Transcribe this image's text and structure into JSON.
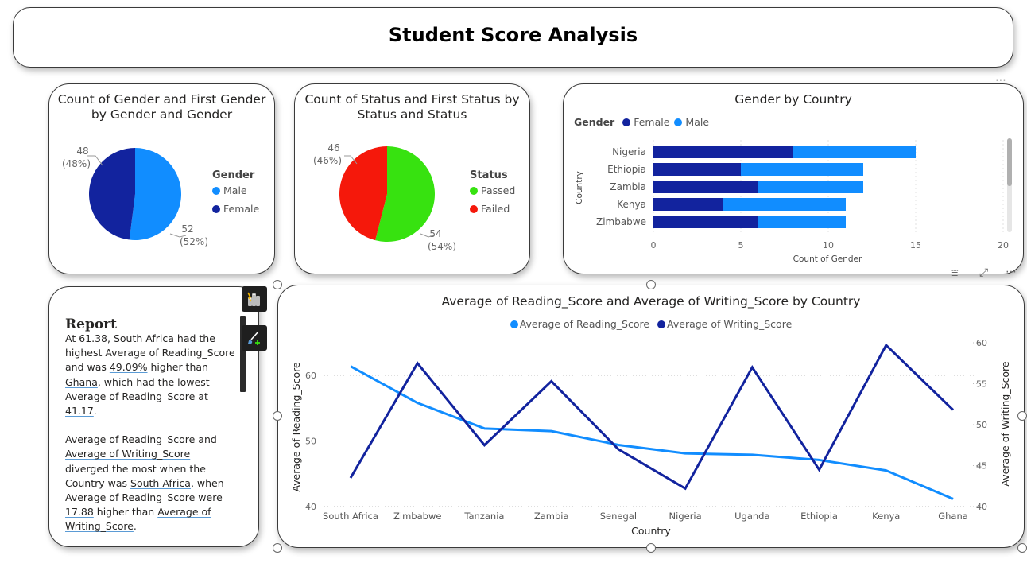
{
  "page_title": "Student Score Analysis",
  "colors": {
    "male": "#118dff",
    "female": "#12239e",
    "passed": "#37e210",
    "failed": "#f5180b",
    "reading": "#118dff",
    "writing": "#12239e"
  },
  "gender_pie": {
    "title_line1": "Count of Gender and First Gender",
    "title_line2": "by Gender and Gender",
    "legend_title": "Gender",
    "labels": [
      "Male",
      "Female"
    ],
    "data_labels": [
      {
        "count": "52",
        "pct": "(52%)"
      },
      {
        "count": "48",
        "pct": "(48%)"
      }
    ]
  },
  "status_pie": {
    "title_line1": "Count of Status and First Status by",
    "title_line2": "Status and Status",
    "legend_title": "Status",
    "labels": [
      "Passed",
      "Failed"
    ],
    "data_labels": [
      {
        "count": "54",
        "pct": "(54%)"
      },
      {
        "count": "46",
        "pct": "(46%)"
      }
    ]
  },
  "gender_country": {
    "title": "Gender by Country",
    "legend_title": "Gender",
    "legend": [
      "Female",
      "Male"
    ],
    "y_axis_title": "Country",
    "x_axis_title": "Count of Gender",
    "x_ticks": [
      "0",
      "5",
      "10",
      "15",
      "20"
    ]
  },
  "line_chart": {
    "title": "Average of Reading_Score and Average of Writing_Score by Country",
    "legend": [
      "Average of Reading_Score",
      "Average of Writing_Score"
    ],
    "x_axis_title": "Country",
    "y_left_title": "Average of Reading_Score",
    "y_right_title": "Average of Writing_Score",
    "y_left_ticks": [
      "40",
      "50",
      "60"
    ],
    "y_right_ticks": [
      "40",
      "45",
      "50",
      "55",
      "60"
    ]
  },
  "report": {
    "title": "Report",
    "p1": [
      {
        "t": "At ",
        "u": false
      },
      {
        "t": "61.38",
        "u": true
      },
      {
        "t": ", ",
        "u": false
      },
      {
        "t": "South Africa",
        "u": true
      },
      {
        "t": " had the highest Average of Reading_Score and was ",
        "u": false
      },
      {
        "t": "49.09%",
        "u": true
      },
      {
        "t": " higher than ",
        "u": false
      },
      {
        "t": "Ghana",
        "u": true
      },
      {
        "t": ", which had the lowest Average of Reading_Score at ",
        "u": false
      },
      {
        "t": "41.17",
        "u": true
      },
      {
        "t": ".",
        "u": false
      }
    ],
    "p2": [
      {
        "t": "Average of Reading_Score",
        "u": true
      },
      {
        "t": " and ",
        "u": false
      },
      {
        "t": "Average of Writing_Score",
        "u": true
      },
      {
        "t": " diverged the most when the Country was ",
        "u": false
      },
      {
        "t": "South Africa",
        "u": true
      },
      {
        "t": ", when ",
        "u": false
      },
      {
        "t": "Average of Reading_Score",
        "u": true
      },
      {
        "t": " were ",
        "u": false
      },
      {
        "t": "17.88",
        "u": true
      },
      {
        "t": " higher than ",
        "u": false
      },
      {
        "t": "Average of Writing_Score",
        "u": true
      },
      {
        "t": ".",
        "u": false
      }
    ]
  },
  "chart_data": [
    {
      "type": "pie",
      "title": "Count of Gender and First Gender by Gender and Gender",
      "categories": [
        "Male",
        "Female"
      ],
      "values": [
        52,
        48
      ],
      "legend_position": "right"
    },
    {
      "type": "pie",
      "title": "Count of Status and First Status by Status and Status",
      "categories": [
        "Passed",
        "Failed"
      ],
      "values": [
        54,
        46
      ],
      "legend_position": "right"
    },
    {
      "type": "bar",
      "orientation": "horizontal",
      "stacked": true,
      "title": "Gender by Country",
      "categories": [
        "Nigeria",
        "Ethiopia",
        "Zambia",
        "Kenya",
        "Zimbabwe"
      ],
      "series": [
        {
          "name": "Female",
          "values": [
            8,
            5,
            6,
            4,
            6
          ]
        },
        {
          "name": "Male",
          "values": [
            7,
            7,
            6,
            7,
            5
          ]
        }
      ],
      "xlabel": "Count of Gender",
      "ylabel": "Country",
      "xlim": [
        0,
        20
      ],
      "legend_position": "top-left"
    },
    {
      "type": "line",
      "title": "Average of Reading_Score and Average of Writing_Score by Country",
      "categories": [
        "South Africa",
        "Zimbabwe",
        "Tanzania",
        "Zambia",
        "Senegal",
        "Nigeria",
        "Uganda",
        "Ethiopia",
        "Kenya",
        "Ghana"
      ],
      "series": [
        {
          "name": "Average of Reading_Score",
          "axis": "left",
          "values": [
            61.38,
            55.8,
            51.9,
            51.5,
            49.4,
            48.1,
            47.9,
            47.1,
            45.5,
            41.17
          ]
        },
        {
          "name": "Average of Writing_Score",
          "axis": "right",
          "values": [
            43.5,
            57.5,
            47.5,
            55.3,
            47.0,
            42.2,
            57.0,
            44.5,
            59.7,
            51.8
          ]
        }
      ],
      "xlabel": "Country",
      "ylabel": "Average of Reading_Score",
      "y2label": "Average of Writing_Score",
      "ylim": [
        40,
        62
      ],
      "y2lim": [
        40,
        60
      ],
      "legend_position": "top-center"
    }
  ]
}
